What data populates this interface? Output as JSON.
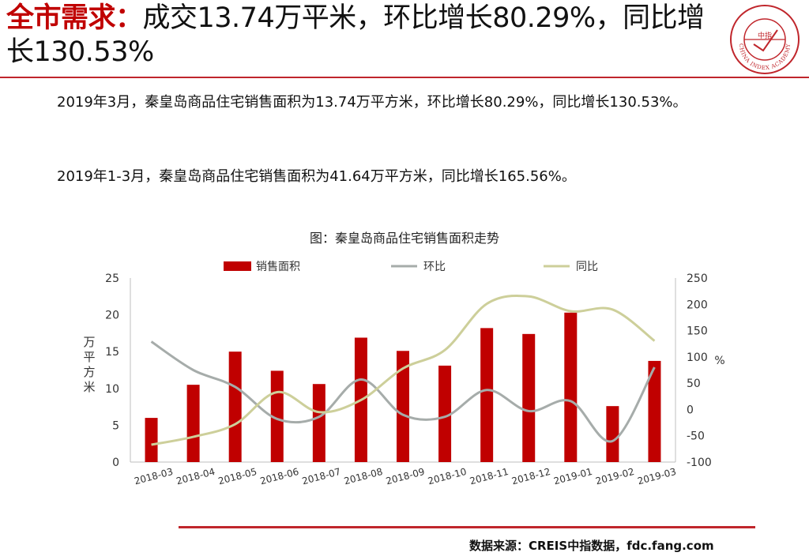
{
  "header": {
    "title_accent": "全市需求：",
    "title_rest": "成交13.74万平米，环比增长80.29%，同比增长130.53%",
    "logo_text": "CHINA INDEX ACADEMY",
    "logo_center": "中指"
  },
  "body": {
    "paragraph1": "2019年3月，秦皇岛商品住宅销售面积为13.74万平方米，环比增长80.29%，同比增长130.53%。",
    "paragraph2": "2019年1-3月，秦皇岛商品住宅销售面积为41.64万平方米，同比增长165.56%。"
  },
  "footer": {
    "source": "数据来源：CREIS中指数据，fdc.fang.com"
  },
  "colors": {
    "accent": "#c00000",
    "bar": "#c00000",
    "mom": "#a6acaa",
    "yoy": "#cdcf9a",
    "rule": "#c0262c"
  },
  "chart_data": {
    "type": "bar",
    "title": "图：秦皇岛商品住宅销售面积走势",
    "categories": [
      "2018-03",
      "2018-04",
      "2018-05",
      "2018-06",
      "2018-07",
      "2018-08",
      "2018-09",
      "2018-10",
      "2018-11",
      "2018-12",
      "2019-01",
      "2019-02",
      "2019-03"
    ],
    "series": [
      {
        "name": "销售面积",
        "type": "bar",
        "axis": "left",
        "values": [
          6.0,
          10.5,
          15.0,
          12.4,
          10.6,
          16.9,
          15.1,
          13.1,
          18.2,
          17.4,
          20.3,
          7.6,
          13.74
        ]
      },
      {
        "name": "环比",
        "type": "line",
        "axis": "right",
        "values": [
          129,
          75,
          43,
          -18,
          -14,
          57,
          -10,
          -14,
          37,
          -3,
          16,
          -60,
          80.29
        ]
      },
      {
        "name": "同比",
        "type": "line",
        "axis": "right",
        "values": [
          -67,
          -52,
          -28,
          33,
          -5,
          18,
          78,
          113,
          201,
          215,
          187,
          190,
          130.53
        ]
      }
    ],
    "y_left": {
      "label": "万平方米",
      "min": 0,
      "max": 25,
      "ticks": [
        0,
        5,
        10,
        15,
        20,
        25
      ]
    },
    "y_right": {
      "label": "%",
      "min": -100,
      "max": 250,
      "ticks": [
        -100,
        -50,
        0,
        50,
        100,
        150,
        200,
        250
      ]
    },
    "legend_position": "top",
    "grid": false
  }
}
